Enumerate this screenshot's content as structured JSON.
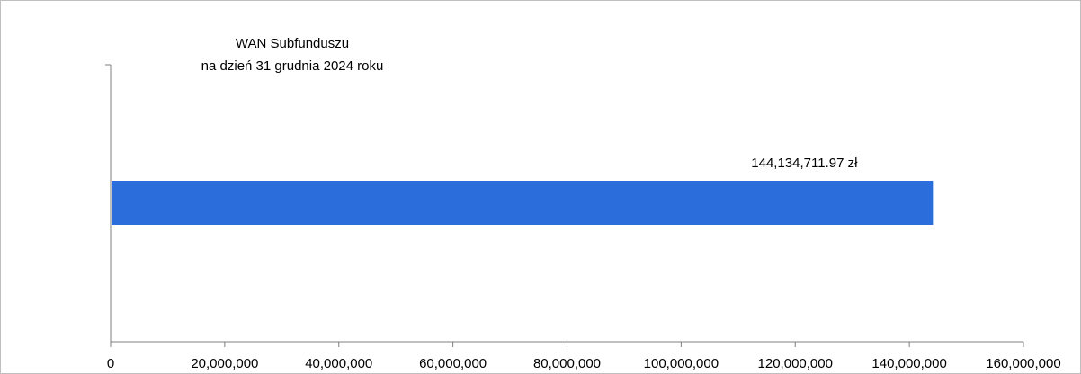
{
  "chart_data": {
    "type": "bar",
    "orientation": "horizontal",
    "title_lines": [
      "WAN Subfunduszu",
      "na dzień 31 grudnia 2024 roku"
    ],
    "categories": [
      ""
    ],
    "values": [
      144134711.97
    ],
    "data_labels": [
      "144,134,711.97 zł"
    ],
    "xlim": [
      0,
      160000000
    ],
    "xticks": [
      0,
      20000000,
      40000000,
      60000000,
      80000000,
      100000000,
      120000000,
      140000000,
      160000000
    ],
    "xtick_labels": [
      "0",
      "20,000,000",
      "40,000,000",
      "60,000,000",
      "80,000,000",
      "100,000,000",
      "120,000,000",
      "140,000,000",
      "160,000,000"
    ],
    "grid": false,
    "legend": "none",
    "colors": {
      "bar": "#2a6ddb",
      "axis": "#7f7f7f",
      "frame": "#bfbfbf"
    }
  }
}
